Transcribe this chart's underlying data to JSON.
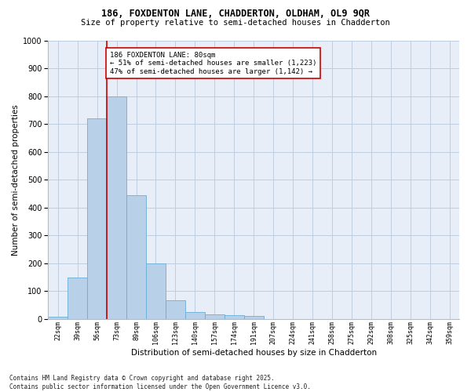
{
  "title1": "186, FOXDENTON LANE, CHADDERTON, OLDHAM, OL9 9QR",
  "title2": "Size of property relative to semi-detached houses in Chadderton",
  "xlabel": "Distribution of semi-detached houses by size in Chadderton",
  "ylabel": "Number of semi-detached properties",
  "bin_labels": [
    "22sqm",
    "39sqm",
    "56sqm",
    "73sqm",
    "89sqm",
    "106sqm",
    "123sqm",
    "140sqm",
    "157sqm",
    "174sqm",
    "191sqm",
    "207sqm",
    "224sqm",
    "241sqm",
    "258sqm",
    "275sqm",
    "292sqm",
    "308sqm",
    "325sqm",
    "342sqm",
    "359sqm"
  ],
  "bin_values": [
    8,
    148,
    720,
    800,
    445,
    200,
    68,
    25,
    17,
    12,
    10,
    0,
    0,
    0,
    0,
    0,
    0,
    0,
    0,
    0,
    0
  ],
  "bar_color": "#b8d0e8",
  "bar_edge_color": "#6baed6",
  "property_size_bin_index": 3,
  "vline_color": "#cc0000",
  "annotation_text": "186 FOXDENTON LANE: 80sqm\n← 51% of semi-detached houses are smaller (1,223)\n47% of semi-detached houses are larger (1,142) →",
  "annotation_box_color": "#ffffff",
  "annotation_box_edge_color": "#cc0000",
  "ylim": [
    0,
    1000
  ],
  "yticks": [
    0,
    100,
    200,
    300,
    400,
    500,
    600,
    700,
    800,
    900,
    1000
  ],
  "background_color": "#ffffff",
  "plot_bg_color": "#e8eef8",
  "grid_color": "#c0cce0",
  "footnote": "Contains HM Land Registry data © Crown copyright and database right 2025.\nContains public sector information licensed under the Open Government Licence v3.0."
}
